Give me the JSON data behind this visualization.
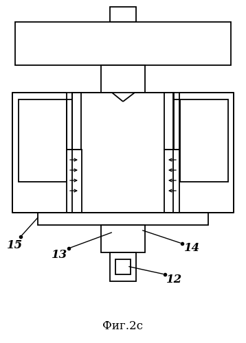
{
  "title": "Фиг.2с",
  "bg_color": "#ffffff",
  "line_color": "#000000",
  "fig_width": 3.58,
  "fig_height": 5.0,
  "dpi": 100
}
